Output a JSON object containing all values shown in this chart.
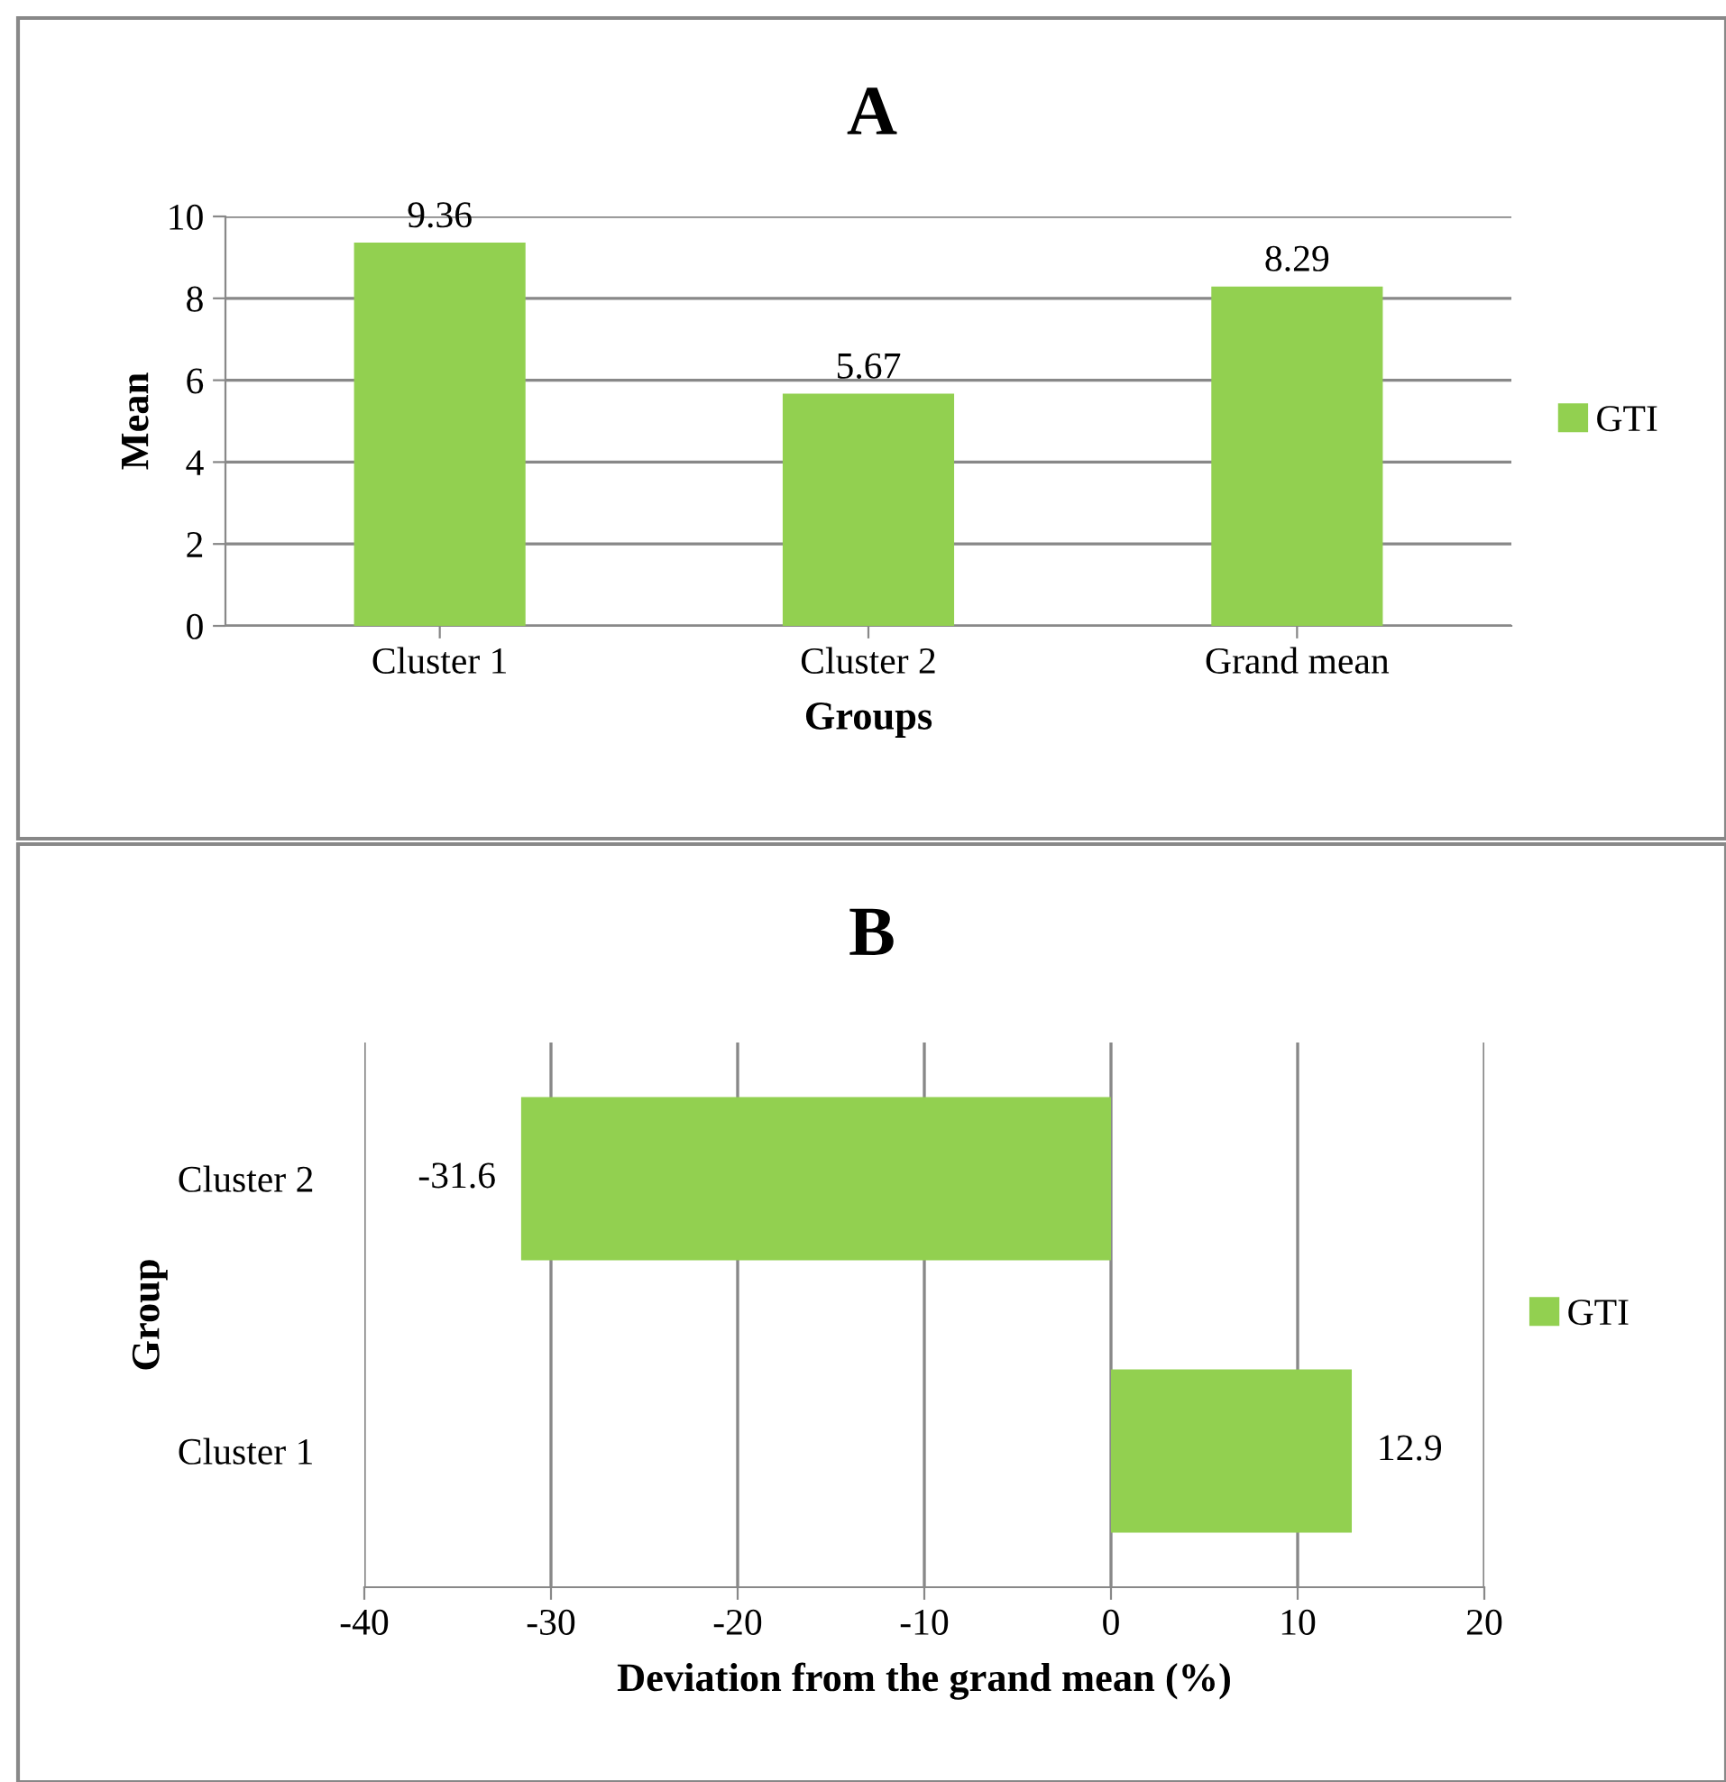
{
  "chart_data": [
    {
      "type": "bar",
      "title": "A",
      "xlabel": "Groups",
      "ylabel": "Mean",
      "categories": [
        "Cluster 1",
        "Cluster 2",
        "Grand mean"
      ],
      "series": [
        {
          "name": "GTI",
          "color": "#92d050",
          "values": [
            9.36,
            5.67,
            8.29
          ]
        }
      ],
      "ylim": [
        0,
        10
      ],
      "yticks": [
        0,
        2,
        4,
        6,
        8,
        10
      ],
      "grid": "y",
      "legend": "right",
      "data_labels": true
    },
    {
      "type": "bar",
      "orientation": "horizontal",
      "title": "B",
      "xlabel": "Deviation from the grand mean (%)",
      "ylabel": "Group",
      "categories": [
        "Cluster 2",
        "Cluster 1"
      ],
      "series": [
        {
          "name": "GTI",
          "color": "#92d050",
          "values": [
            -31.6,
            12.9
          ]
        }
      ],
      "xlim": [
        -40,
        20
      ],
      "xticks": [
        -40,
        -30,
        -20,
        -10,
        0,
        10,
        20
      ],
      "grid": "x",
      "legend": "right",
      "data_labels": true
    }
  ]
}
